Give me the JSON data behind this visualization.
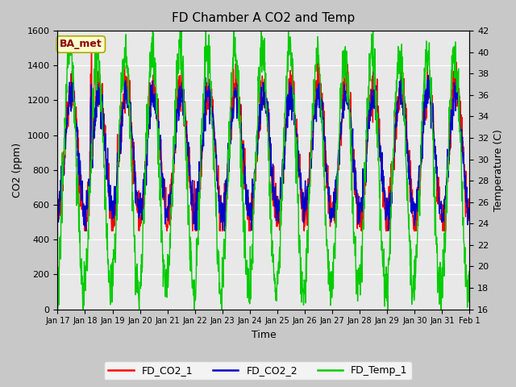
{
  "title": "FD Chamber A CO2 and Temp",
  "xlabel": "Time",
  "ylabel_left": "CO2 (ppm)",
  "ylabel_right": "Temperature (C)",
  "annotation": "BA_met",
  "annotation_color": "#8B0000",
  "annotation_bg": "#FFFFCC",
  "annotation_edge": "#AAAA00",
  "fig_bg_color": "#C8C8C8",
  "plot_bg_color": "#E8E8E8",
  "legend_labels": [
    "FD_CO2_1",
    "FD_CO2_2",
    "FD_Temp_1"
  ],
  "legend_colors": [
    "#FF0000",
    "#0000CC",
    "#00CC00"
  ],
  "co2_ylim": [
    0,
    1600
  ],
  "temp_ylim": [
    16,
    42
  ],
  "co2_yticks": [
    0,
    200,
    400,
    600,
    800,
    1000,
    1200,
    1400,
    1600
  ],
  "temp_yticks": [
    16,
    18,
    20,
    22,
    24,
    26,
    28,
    30,
    32,
    34,
    36,
    38,
    40,
    42
  ],
  "xtick_labels": [
    "Jan 17",
    "Jan 18",
    "Jan 19",
    "Jan 20",
    "Jan 21",
    "Jan 22",
    "Jan 23",
    "Jan 24",
    "Jan 25",
    "Jan 26",
    "Jan 27",
    "Jan 28",
    "Jan 29",
    "Jan 30",
    "Jan 31",
    "Feb 1"
  ],
  "num_days": 15,
  "figsize": [
    6.4,
    4.8
  ],
  "dpi": 100,
  "line_width": 1.0
}
